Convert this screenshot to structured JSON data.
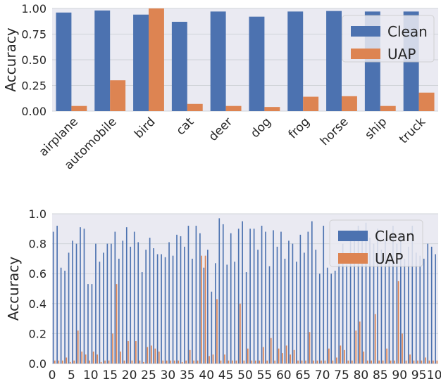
{
  "colors": {
    "clean": "#4c72b0",
    "uap": "#dd8452"
  },
  "chart_data": [
    {
      "type": "bar",
      "ylabel": "Accuracy",
      "ylim": [
        0,
        1.0
      ],
      "yticks": [
        "0.00",
        "0.25",
        "0.50",
        "0.75",
        "1.00"
      ],
      "ytick_values": [
        0,
        0.25,
        0.5,
        0.75,
        1.0
      ],
      "categories": [
        "airplane",
        "automobile",
        "bird",
        "cat",
        "deer",
        "dog",
        "frog",
        "horse",
        "ship",
        "truck"
      ],
      "series": [
        {
          "name": "Clean",
          "values": [
            0.96,
            0.98,
            0.94,
            0.87,
            0.97,
            0.92,
            0.97,
            0.975,
            0.97,
            0.97
          ]
        },
        {
          "name": "UAP",
          "values": [
            0.05,
            0.3,
            1.0,
            0.07,
            0.05,
            0.04,
            0.14,
            0.145,
            0.05,
            0.18
          ]
        }
      ],
      "legend": {
        "placement": "top-right",
        "entries": [
          "Clean",
          "UAP"
        ]
      },
      "grid": true
    },
    {
      "type": "bar",
      "ylabel": "Accuracy",
      "ylim": [
        0,
        1.0
      ],
      "yticks": [
        "0.0",
        "0.2",
        "0.4",
        "0.6",
        "0.8",
        "1.0"
      ],
      "ytick_values": [
        0,
        0.2,
        0.4,
        0.6,
        0.8,
        1.0
      ],
      "xticks": [
        "0",
        "5",
        "10",
        "15",
        "20",
        "25",
        "30",
        "35",
        "40",
        "45",
        "50",
        "55",
        "60",
        "65",
        "70",
        "75",
        "80",
        "85",
        "90",
        "95",
        "100"
      ],
      "xtick_values": [
        0,
        5,
        10,
        15,
        20,
        25,
        30,
        35,
        40,
        45,
        50,
        55,
        60,
        65,
        70,
        75,
        80,
        85,
        90,
        95,
        100
      ],
      "x": [
        0,
        1,
        2,
        3,
        4,
        5,
        6,
        7,
        8,
        9,
        10,
        11,
        12,
        13,
        14,
        15,
        16,
        17,
        18,
        19,
        20,
        21,
        22,
        23,
        24,
        25,
        26,
        27,
        28,
        29,
        30,
        31,
        32,
        33,
        34,
        35,
        36,
        37,
        38,
        39,
        40,
        41,
        42,
        43,
        44,
        45,
        46,
        47,
        48,
        49,
        50,
        51,
        52,
        53,
        54,
        55,
        56,
        57,
        58,
        59,
        60,
        61,
        62,
        63,
        64,
        65,
        66,
        67,
        68,
        69,
        70,
        71,
        72,
        73,
        74,
        75,
        76,
        77,
        78,
        79,
        80,
        81,
        82,
        83,
        84,
        85,
        86,
        87,
        88,
        89,
        90,
        91,
        92,
        93,
        94,
        95,
        96,
        97,
        98,
        99
      ],
      "series": [
        {
          "name": "Clean",
          "values": [
            0.88,
            0.92,
            0.64,
            0.62,
            0.74,
            0.82,
            0.8,
            0.91,
            0.9,
            0.53,
            0.53,
            0.8,
            0.68,
            0.74,
            0.8,
            0.8,
            0.88,
            0.7,
            0.82,
            0.91,
            0.78,
            0.88,
            0.81,
            0.61,
            0.76,
            0.84,
            0.77,
            0.73,
            0.73,
            0.71,
            0.81,
            0.72,
            0.86,
            0.85,
            0.78,
            0.92,
            0.7,
            0.92,
            0.87,
            0.64,
            0.76,
            0.48,
            0.67,
            0.97,
            0.93,
            0.66,
            0.87,
            0.68,
            0.9,
            0.95,
            0.61,
            0.9,
            0.9,
            0.76,
            0.92,
            0.88,
            0.65,
            0.89,
            0.78,
            0.88,
            0.7,
            0.82,
            0.8,
            0.68,
            0.86,
            0.74,
            0.88,
            0.95,
            0.76,
            0.6,
            0.92,
            0.64,
            0.6,
            0.62,
            0.72,
            0.8,
            0.66,
            0.84,
            0.88,
            0.92,
            0.86,
            0.94,
            0.84,
            0.8,
            0.9,
            0.76,
            0.84,
            0.7,
            0.92,
            0.8,
            0.86,
            0.7,
            0.78,
            0.92,
            0.74,
            0.72,
            0.7,
            0.8,
            0.78,
            0.73
          ]
        },
        {
          "name": "UAP",
          "values": [
            0.02,
            0.02,
            0.02,
            0.04,
            0.01,
            0.02,
            0.22,
            0.08,
            0.06,
            0.02,
            0.08,
            0.06,
            0.01,
            0.02,
            0.02,
            0.2,
            0.53,
            0.08,
            0.02,
            0.15,
            0.02,
            0.15,
            0.02,
            0.01,
            0.11,
            0.12,
            0.1,
            0.08,
            0.02,
            0.02,
            0.02,
            0.02,
            0.02,
            0.01,
            0.02,
            0.09,
            0.02,
            0.02,
            0.72,
            0.72,
            0.05,
            0.06,
            0.43,
            0.02,
            0.06,
            0.02,
            0.02,
            0.02,
            0.4,
            0.02,
            0.1,
            0.02,
            0.02,
            0.02,
            0.11,
            0.02,
            0.17,
            0.02,
            0.1,
            0.07,
            0.12,
            0.06,
            0.09,
            0.02,
            0.02,
            0.02,
            0.21,
            0.02,
            0.02,
            0.02,
            0.02,
            0.1,
            0.02,
            0.04,
            0.12,
            0.09,
            0.02,
            0.02,
            0.22,
            0.28,
            0.08,
            0.02,
            0.02,
            0.33,
            0.02,
            0.02,
            0.1,
            0.02,
            0.02,
            0.55,
            0.2,
            0.02,
            0.06,
            0.02,
            0.02,
            0.02,
            0.04,
            0.02,
            0.02,
            0.02
          ]
        }
      ],
      "legend": {
        "placement": "top-right",
        "entries": [
          "Clean",
          "UAP"
        ]
      },
      "grid": true
    }
  ]
}
